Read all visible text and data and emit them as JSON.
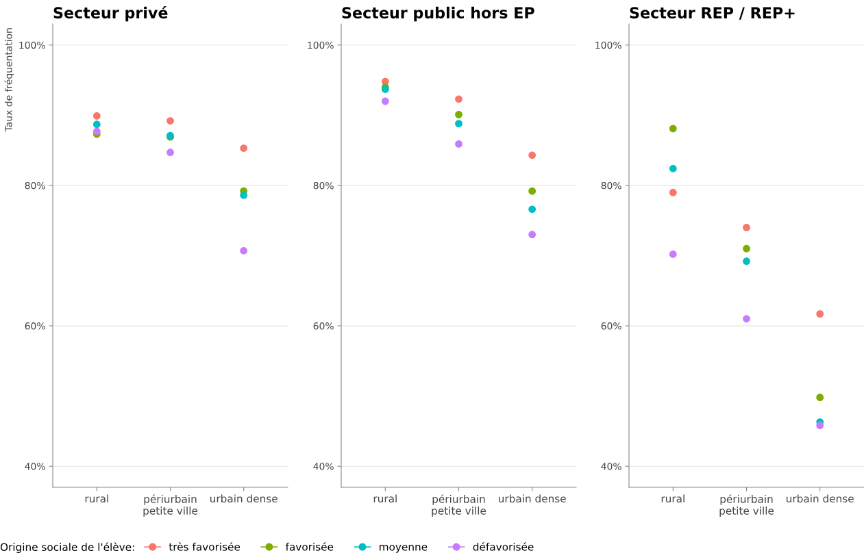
{
  "chart_data": [
    {
      "type": "scatter",
      "title": "Secteur privé",
      "ylabel": "Taux de fréquentation",
      "categories": [
        "rural",
        "périurbain\npetite ville",
        "urbain dense"
      ],
      "ylim": [
        37,
        103
      ],
      "yticks": [
        {
          "value": 40,
          "label": "40%"
        },
        {
          "value": 60,
          "label": "60%"
        },
        {
          "value": 80,
          "label": "80%"
        },
        {
          "value": 100,
          "label": "100%"
        }
      ],
      "grid": "y",
      "marker": "circle",
      "legend": "bottom",
      "legend_title": "Origine sociale de l'élève:",
      "series": [
        {
          "name": "très favorisée",
          "color": "#f8766d",
          "values": [
            89.9,
            89.2,
            85.3
          ]
        },
        {
          "name": "favorisée",
          "color": "#7cae00",
          "values": [
            87.3,
            86.9,
            79.2
          ]
        },
        {
          "name": "moyenne",
          "color": "#00bfc4",
          "values": [
            88.7,
            87.1,
            78.6
          ]
        },
        {
          "name": "défavorisée",
          "color": "#c77cff",
          "values": [
            87.7,
            84.7,
            70.7
          ]
        }
      ]
    },
    {
      "type": "scatter",
      "title": "Secteur public hors EP",
      "categories": [
        "rural",
        "périurbain\npetite ville",
        "urbain dense"
      ],
      "ylim": [
        37,
        103
      ],
      "yticks": [
        {
          "value": 40,
          "label": "40%"
        },
        {
          "value": 60,
          "label": "60%"
        },
        {
          "value": 80,
          "label": "80%"
        },
        {
          "value": 100,
          "label": "100%"
        }
      ],
      "grid": "y",
      "marker": "circle",
      "series": [
        {
          "color": "#f8766d",
          "values": [
            94.8,
            92.3,
            84.3
          ]
        },
        {
          "color": "#7cae00",
          "values": [
            94.0,
            90.1,
            79.2
          ]
        },
        {
          "color": "#00bfc4",
          "values": [
            93.7,
            88.8,
            76.6
          ]
        },
        {
          "color": "#c77cff",
          "values": [
            92.0,
            85.9,
            73.0
          ]
        }
      ]
    },
    {
      "type": "scatter",
      "title": "Secteur REP / REP+",
      "categories": [
        "rural",
        "périurbain\npetite ville",
        "urbain dense"
      ],
      "ylim": [
        37,
        103
      ],
      "yticks": [
        {
          "value": 40,
          "label": "40%"
        },
        {
          "value": 60,
          "label": "60%"
        },
        {
          "value": 80,
          "label": "80%"
        },
        {
          "value": 100,
          "label": "100%"
        }
      ],
      "grid": "y",
      "marker": "circle",
      "series": [
        {
          "color": "#f8766d",
          "values": [
            79.0,
            74.0,
            61.7
          ]
        },
        {
          "color": "#7cae00",
          "values": [
            88.1,
            71.0,
            49.8
          ]
        },
        {
          "color": "#00bfc4",
          "values": [
            82.4,
            69.2,
            46.3
          ]
        },
        {
          "color": "#c77cff",
          "values": [
            70.2,
            61.0,
            45.8
          ]
        }
      ]
    }
  ]
}
